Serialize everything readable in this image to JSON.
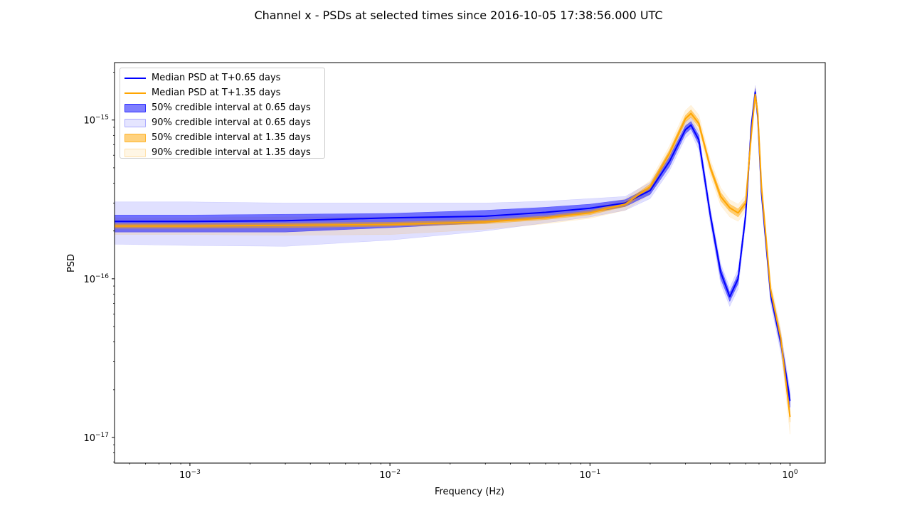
{
  "title": "Channel x - PSDs at selected times since 2016-10-05 17:38:56.000 UTC",
  "chart_data": {
    "type": "line",
    "title": "Channel x - PSDs at selected times since 2016-10-05 17:38:56.000 UTC",
    "xlabel": "Frequency (Hz)",
    "ylabel": "PSD",
    "xscale": "log",
    "yscale": "log",
    "xlim": [
      0.00042,
      1.5
    ],
    "ylim": [
      6.9e-18,
      2.3e-15
    ],
    "grid": false,
    "legend_position": "top-left",
    "x_ticks": [
      {
        "value": 0.001,
        "mant": "10",
        "exp": "−3"
      },
      {
        "value": 0.01,
        "mant": "10",
        "exp": "−2"
      },
      {
        "value": 0.1,
        "mant": "10",
        "exp": "−1"
      },
      {
        "value": 1,
        "mant": "10",
        "exp": "0"
      }
    ],
    "y_ticks": [
      {
        "value": 1e-15,
        "mant": "10",
        "exp": "−15"
      },
      {
        "value": 1e-16,
        "mant": "10",
        "exp": "−16"
      },
      {
        "value": 1e-17,
        "mant": "10",
        "exp": "−17"
      }
    ],
    "x": [
      0.00042,
      0.001,
      0.003,
      0.01,
      0.03,
      0.06,
      0.1,
      0.15,
      0.2,
      0.25,
      0.3,
      0.32,
      0.35,
      0.4,
      0.45,
      0.5,
      0.55,
      0.6,
      0.64,
      0.67,
      0.69,
      0.72,
      0.8,
      0.9,
      1.0
    ],
    "series": [
      {
        "name": "Median PSD at T+0.65 days",
        "color": "#0000ff",
        "median": [
          2.3e-16,
          2.3e-16,
          2.32e-16,
          2.42e-16,
          2.48e-16,
          2.62e-16,
          2.78e-16,
          3e-16,
          3.6e-16,
          5.5e-16,
          8.7e-16,
          9.3e-16,
          7.5e-16,
          2.5e-16,
          1.1e-16,
          7.7e-17,
          1e-16,
          2.5e-16,
          9e-16,
          1.5e-15,
          1.05e-15,
          3.5e-16,
          8e-17,
          4e-17,
          1.7e-17
        ],
        "band50_low": [
          1.97e-16,
          1.97e-16,
          1.97e-16,
          2.1e-16,
          2.25e-16,
          2.45e-16,
          2.6e-16,
          2.85e-16,
          3.4e-16,
          5.1e-16,
          8.2e-16,
          8.8e-16,
          7e-16,
          2.35e-16,
          1e-16,
          7.2e-17,
          9.3e-17,
          2.35e-16,
          8.5e-16,
          1.42e-15,
          1e-15,
          3.3e-16,
          7.5e-17,
          3.7e-17,
          1.55e-17
        ],
        "band50_high": [
          2.52e-16,
          2.52e-16,
          2.55e-16,
          2.58e-16,
          2.7e-16,
          2.82e-16,
          2.95e-16,
          3.15e-16,
          3.8e-16,
          5.9e-16,
          9.2e-16,
          9.8e-16,
          8e-16,
          2.65e-16,
          1.18e-16,
          8.2e-17,
          1.07e-16,
          2.65e-16,
          9.5e-16,
          1.58e-15,
          1.1e-15,
          3.7e-16,
          8.5e-17,
          4.3e-17,
          1.85e-17
        ],
        "band90_low": [
          1.65e-16,
          1.62e-16,
          1.6e-16,
          1.75e-16,
          2e-16,
          2.25e-16,
          2.45e-16,
          2.7e-16,
          3.2e-16,
          4.8e-16,
          7.7e-16,
          8.3e-16,
          6.5e-16,
          2.2e-16,
          9.3e-17,
          6.7e-17,
          8.6e-17,
          2.2e-16,
          8e-16,
          1.35e-15,
          9.4e-16,
          3.1e-16,
          7e-17,
          3.4e-17,
          1.4e-17
        ],
        "band90_high": [
          3.05e-16,
          3.05e-16,
          3e-16,
          3e-16,
          3e-16,
          3.08e-16,
          3.2e-16,
          3.3e-16,
          4.05e-16,
          6.3e-16,
          9.8e-16,
          1.04e-15,
          8.5e-16,
          2.8e-16,
          1.25e-16,
          8.8e-17,
          1.15e-16,
          2.8e-16,
          1e-15,
          1.65e-15,
          1.15e-15,
          3.9e-16,
          9e-17,
          4.6e-17,
          2e-17
        ]
      },
      {
        "name": "Median PSD at T+1.35 days",
        "color": "#ffa500",
        "median": [
          2.15e-16,
          2.15e-16,
          2.17e-16,
          2.2e-16,
          2.28e-16,
          2.42e-16,
          2.6e-16,
          2.95e-16,
          3.8e-16,
          6.2e-16,
          1.02e-15,
          1.1e-15,
          9.5e-16,
          5e-16,
          3.3e-16,
          2.8e-16,
          2.6e-16,
          3e-16,
          8e-16,
          1.45e-15,
          1.1e-15,
          3.8e-16,
          8.5e-17,
          4.2e-17,
          1.35e-17
        ],
        "band50_low": [
          2.08e-16,
          2.08e-16,
          2.1e-16,
          2.14e-16,
          2.22e-16,
          2.36e-16,
          2.53e-16,
          2.85e-16,
          3.65e-16,
          5.9e-16,
          9.7e-16,
          1.04e-15,
          9e-16,
          4.75e-16,
          3.1e-16,
          2.65e-16,
          2.45e-16,
          2.85e-16,
          7.6e-16,
          1.38e-15,
          1.05e-15,
          3.6e-16,
          8e-17,
          4e-17,
          1.25e-17
        ],
        "band50_high": [
          2.22e-16,
          2.22e-16,
          2.24e-16,
          2.27e-16,
          2.35e-16,
          2.49e-16,
          2.68e-16,
          3.05e-16,
          3.95e-16,
          6.5e-16,
          1.07e-15,
          1.16e-15,
          1e-15,
          5.25e-16,
          3.5e-16,
          2.95e-16,
          2.75e-16,
          3.15e-16,
          8.4e-16,
          1.52e-15,
          1.15e-15,
          4e-16,
          9e-17,
          4.4e-17,
          1.45e-17
        ],
        "band90_low": [
          1.9e-16,
          1.9e-16,
          1.88e-16,
          1.9e-16,
          2.05e-16,
          2.22e-16,
          2.4e-16,
          2.7e-16,
          3.4e-16,
          5.5e-16,
          9e-16,
          9.7e-16,
          8.4e-16,
          4.4e-16,
          2.9e-16,
          2.45e-16,
          2.3e-16,
          2.65e-16,
          7.1e-16,
          1.3e-15,
          9.8e-16,
          3.3e-16,
          7.4e-17,
          3.7e-17,
          1.05e-17
        ],
        "band90_high": [
          2.42e-16,
          2.42e-16,
          2.45e-16,
          2.45e-16,
          2.5e-16,
          2.62e-16,
          2.8e-16,
          3.2e-16,
          4.15e-16,
          6.9e-16,
          1.15e-15,
          1.24e-15,
          1.08e-15,
          5.6e-16,
          3.75e-16,
          3.15e-16,
          2.95e-16,
          3.35e-16,
          8.9e-16,
          1.62e-15,
          1.22e-15,
          4.3e-16,
          9.6e-17,
          4.8e-17,
          1.7e-17
        ]
      }
    ],
    "legend": [
      {
        "label": "Median PSD at T+0.65 days",
        "kind": "line",
        "color": "#0000ff"
      },
      {
        "label": "Median PSD at T+1.35 days",
        "kind": "line",
        "color": "#ffa500"
      },
      {
        "label": "50% credible interval at 0.65 days",
        "kind": "patch",
        "color": "#0000ff",
        "alpha": 0.5
      },
      {
        "label": "90% credible interval at 0.65 days",
        "kind": "patch",
        "color": "#0000ff",
        "alpha": 0.1
      },
      {
        "label": "50% credible interval at 1.35 days",
        "kind": "patch",
        "color": "#ffa500",
        "alpha": 0.5
      },
      {
        "label": "90% credible interval at 1.35 days",
        "kind": "patch",
        "color": "#ffa500",
        "alpha": 0.1
      }
    ]
  }
}
